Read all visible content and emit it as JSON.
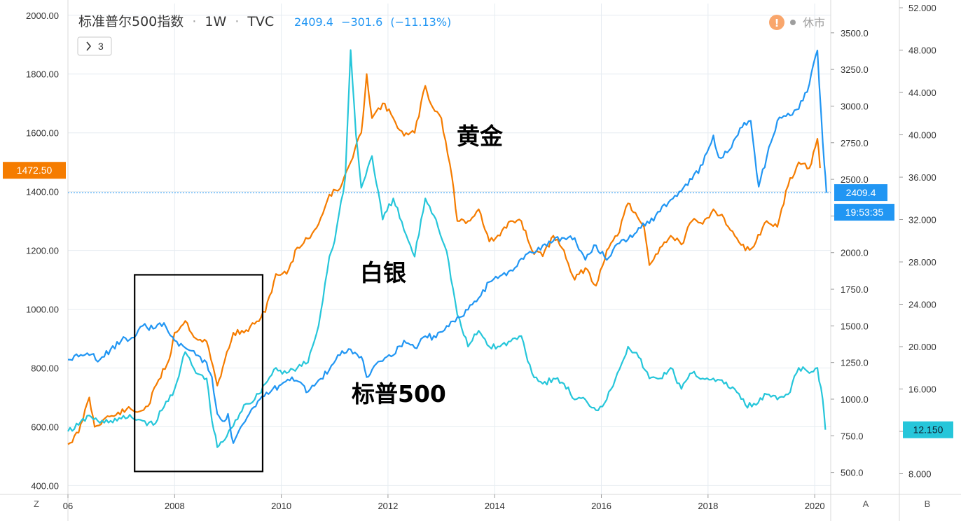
{
  "header": {
    "title": "标准普尔500指数",
    "sep1": "·",
    "interval": "1W",
    "sep2": "·",
    "source": "TVC",
    "last": "2409.4",
    "change": "−301.6",
    "change_pct": "(−11.13%)",
    "collapse_button": "3",
    "market_status": "休市",
    "warning_symbol": "!"
  },
  "colors": {
    "gold": "#f57c00",
    "silver": "#26c6da",
    "sp500": "#2196f3",
    "grid": "#e6ecf1",
    "tag_time": "#2196f3"
  },
  "chart_data": {
    "type": "line",
    "xlabel": "",
    "x_ticks": [
      "06",
      "2008",
      "2010",
      "2012",
      "2014",
      "2016",
      "2018",
      "2020"
    ],
    "grid": true,
    "axes": {
      "left": {
        "range": [
          370,
          2040
        ],
        "ticks": [
          "400.00",
          "600.00",
          "800.00",
          "1000.00",
          "1200.00",
          "1400.00",
          "1600.00",
          "1800.00",
          "2000.00"
        ]
      },
      "A": {
        "label": "A",
        "range": [
          350,
          3700
        ],
        "ticks": [
          "500.0",
          "750.0",
          "1000.0",
          "1250.0",
          "1500.0",
          "1750.0",
          "2000.0",
          "2250.0",
          "2500.0",
          "2750.0",
          "3000.0",
          "3250.0",
          "3500.0"
        ]
      },
      "B": {
        "label": "B",
        "range": [
          6.05,
          52.4
        ],
        "ticks": [
          "8.000",
          "12.000",
          "16.000",
          "20.000",
          "24.000",
          "28.000",
          "32.000",
          "36.000",
          "40.000",
          "44.000",
          "48.000",
          "52.000"
        ]
      }
    },
    "series": [
      {
        "name": "黄金",
        "axis": "left",
        "x": [
          2006.0,
          2006.2,
          2006.4,
          2006.5,
          2006.7,
          2006.9,
          2007.1,
          2007.3,
          2007.5,
          2007.7,
          2007.9,
          2008.0,
          2008.2,
          2008.4,
          2008.6,
          2008.8,
          2008.9,
          2009.1,
          2009.3,
          2009.5,
          2009.7,
          2009.9,
          2010.1,
          2010.3,
          2010.5,
          2010.7,
          2010.9,
          2011.1,
          2011.3,
          2011.5,
          2011.6,
          2011.7,
          2011.9,
          2012.1,
          2012.3,
          2012.5,
          2012.7,
          2012.8,
          2013.0,
          2013.2,
          2013.3,
          2013.5,
          2013.7,
          2013.9,
          2014.1,
          2014.3,
          2014.5,
          2014.7,
          2014.9,
          2015.1,
          2015.3,
          2015.5,
          2015.7,
          2015.9,
          2016.1,
          2016.3,
          2016.5,
          2016.6,
          2016.8,
          2016.9,
          2017.1,
          2017.3,
          2017.5,
          2017.7,
          2017.9,
          2018.1,
          2018.3,
          2018.5,
          2018.7,
          2018.9,
          2019.1,
          2019.3,
          2019.5,
          2019.7,
          2019.9,
          2020.05,
          2020.1
        ],
        "y": [
          540,
          580,
          700,
          600,
          630,
          640,
          660,
          650,
          670,
          760,
          830,
          920,
          960,
          900,
          890,
          740,
          800,
          920,
          920,
          950,
          990,
          1120,
          1120,
          1210,
          1240,
          1290,
          1390,
          1410,
          1500,
          1600,
          1800,
          1650,
          1700,
          1650,
          1590,
          1600,
          1760,
          1700,
          1650,
          1450,
          1300,
          1300,
          1340,
          1230,
          1250,
          1300,
          1300,
          1200,
          1180,
          1250,
          1200,
          1100,
          1140,
          1080,
          1200,
          1250,
          1360,
          1330,
          1280,
          1150,
          1210,
          1250,
          1220,
          1300,
          1290,
          1340,
          1310,
          1250,
          1200,
          1230,
          1300,
          1280,
          1420,
          1500,
          1480,
          1580,
          1480
        ]
      },
      {
        "name": "白银",
        "axis": "B",
        "x": [
          2006.0,
          2006.2,
          2006.4,
          2006.6,
          2006.8,
          2007.0,
          2007.2,
          2007.4,
          2007.6,
          2007.8,
          2008.0,
          2008.2,
          2008.4,
          2008.6,
          2008.7,
          2008.8,
          2008.9,
          2009.1,
          2009.3,
          2009.5,
          2009.7,
          2009.9,
          2010.1,
          2010.3,
          2010.5,
          2010.7,
          2010.9,
          2011.0,
          2011.2,
          2011.3,
          2011.4,
          2011.5,
          2011.7,
          2011.9,
          2012.1,
          2012.3,
          2012.5,
          2012.7,
          2012.9,
          2013.1,
          2013.3,
          2013.5,
          2013.7,
          2013.9,
          2014.1,
          2014.3,
          2014.5,
          2014.7,
          2014.9,
          2015.1,
          2015.3,
          2015.5,
          2015.7,
          2015.9,
          2016.1,
          2016.3,
          2016.5,
          2016.7,
          2016.9,
          2017.1,
          2017.3,
          2017.5,
          2017.7,
          2017.9,
          2018.1,
          2018.3,
          2018.5,
          2018.7,
          2018.9,
          2019.1,
          2019.3,
          2019.5,
          2019.7,
          2019.9,
          2020.05,
          2020.15,
          2020.2
        ],
        "y": [
          12.0,
          12.6,
          13.5,
          12.8,
          13.0,
          13.2,
          13.3,
          13.0,
          12.6,
          14.3,
          16.0,
          19.5,
          17.5,
          17.0,
          13.0,
          10.5,
          11.0,
          12.5,
          14.5,
          15.0,
          16.5,
          18.0,
          17.5,
          18.0,
          18.5,
          22.0,
          28.5,
          30.0,
          36.0,
          48.0,
          40.0,
          35.0,
          38.0,
          32.0,
          34.0,
          31.0,
          28.5,
          34.0,
          32.0,
          29.0,
          23.0,
          20.0,
          21.5,
          20.0,
          20.0,
          20.5,
          21.0,
          17.5,
          16.5,
          17.0,
          16.5,
          15.0,
          15.0,
          14.0,
          15.0,
          17.5,
          20.0,
          19.0,
          17.0,
          17.0,
          18.0,
          16.0,
          17.5,
          17.0,
          17.0,
          16.5,
          16.0,
          14.5,
          14.5,
          15.5,
          15.0,
          15.5,
          18.0,
          17.5,
          18.0,
          15.0,
          12.15
        ]
      },
      {
        "name": "标普500",
        "axis": "A",
        "x": [
          2006.0,
          2006.2,
          2006.4,
          2006.6,
          2006.8,
          2007.0,
          2007.2,
          2007.4,
          2007.6,
          2007.8,
          2008.0,
          2008.2,
          2008.4,
          2008.6,
          2008.7,
          2008.8,
          2008.9,
          2009.0,
          2009.1,
          2009.2,
          2009.4,
          2009.6,
          2009.8,
          2010.0,
          2010.2,
          2010.4,
          2010.5,
          2010.7,
          2010.9,
          2011.1,
          2011.3,
          2011.5,
          2011.6,
          2011.7,
          2011.9,
          2012.1,
          2012.3,
          2012.5,
          2012.7,
          2012.9,
          2013.1,
          2013.3,
          2013.5,
          2013.7,
          2013.9,
          2014.1,
          2014.3,
          2014.5,
          2014.7,
          2014.9,
          2015.1,
          2015.3,
          2015.5,
          2015.7,
          2015.9,
          2016.1,
          2016.3,
          2016.5,
          2016.7,
          2016.9,
          2017.1,
          2017.3,
          2017.5,
          2017.7,
          2017.9,
          2018.1,
          2018.2,
          2018.4,
          2018.6,
          2018.8,
          2018.95,
          2019.1,
          2019.3,
          2019.5,
          2019.7,
          2019.9,
          2020.05,
          2020.12,
          2020.18,
          2020.22
        ],
        "y": [
          1270,
          1290,
          1300,
          1270,
          1340,
          1400,
          1420,
          1500,
          1480,
          1520,
          1400,
          1350,
          1300,
          1250,
          1150,
          900,
          850,
          900,
          700,
          780,
          900,
          1000,
          1050,
          1100,
          1150,
          1100,
          1050,
          1130,
          1200,
          1300,
          1340,
          1290,
          1150,
          1200,
          1260,
          1300,
          1400,
          1350,
          1430,
          1420,
          1500,
          1560,
          1610,
          1690,
          1800,
          1840,
          1880,
          1960,
          2000,
          2050,
          2080,
          2100,
          2100,
          1950,
          2050,
          1950,
          2060,
          2090,
          2170,
          2200,
          2280,
          2360,
          2420,
          2500,
          2600,
          2800,
          2650,
          2700,
          2850,
          2900,
          2450,
          2650,
          2900,
          2950,
          2980,
          3150,
          3380,
          2950,
          2600,
          2409.4
        ]
      }
    ],
    "annotations": [
      {
        "text": "黄金"
      },
      {
        "text": "白银"
      },
      {
        "text": "标普500"
      }
    ],
    "highlight_box": {
      "x_from": 2007.25,
      "x_to": 2009.65,
      "left_from": 448,
      "left_to": 1117
    },
    "price_tags": {
      "left_tag": {
        "text": "1472.50",
        "value": 1472.5,
        "axis": "left"
      },
      "crosshair": {
        "value": 2409.4,
        "axis": "A"
      },
      "A_last": {
        "text": "2409.4",
        "value": 2409.4
      },
      "A_time": {
        "text": "19:53:35"
      },
      "B_last": {
        "text": "12.150",
        "value": 12.15
      }
    },
    "bottom_labels": {
      "left": "Z",
      "A": "A",
      "B": "B"
    }
  }
}
